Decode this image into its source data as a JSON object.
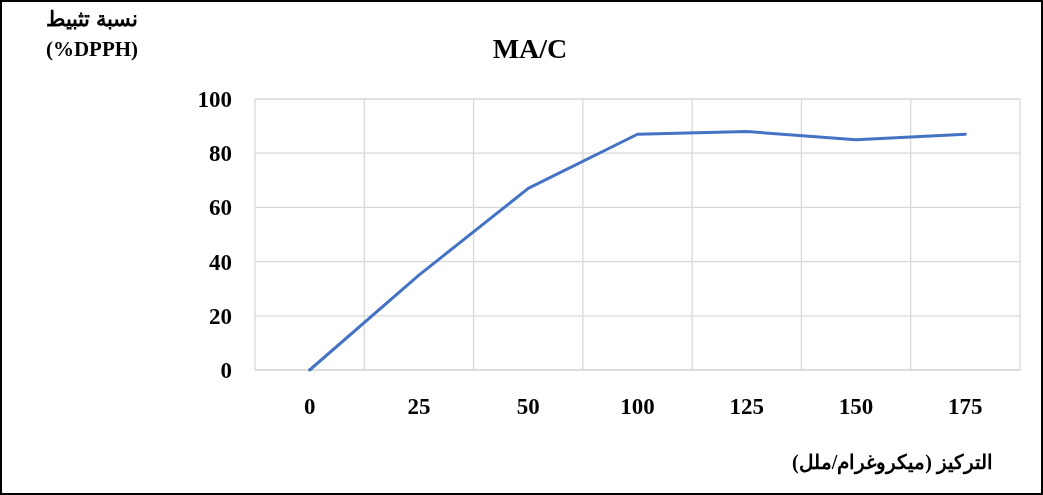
{
  "chart_data": {
    "type": "line",
    "title": "MA/C",
    "ylabel": "نسبة تثبيط (%DPPH)",
    "xlabel": "التركيز (ميكروغرام/ملل)",
    "categories": [
      "0",
      "25",
      "50",
      "100",
      "125",
      "150",
      "175"
    ],
    "series": [
      {
        "color": "#4472c4",
        "values": [
          0,
          35,
          67,
          87,
          88,
          85,
          87
        ]
      }
    ],
    "ylim": [
      0,
      100
    ],
    "yticks": [
      0,
      20,
      40,
      60,
      80,
      100
    ],
    "grid": true,
    "line_style": "solid"
  }
}
